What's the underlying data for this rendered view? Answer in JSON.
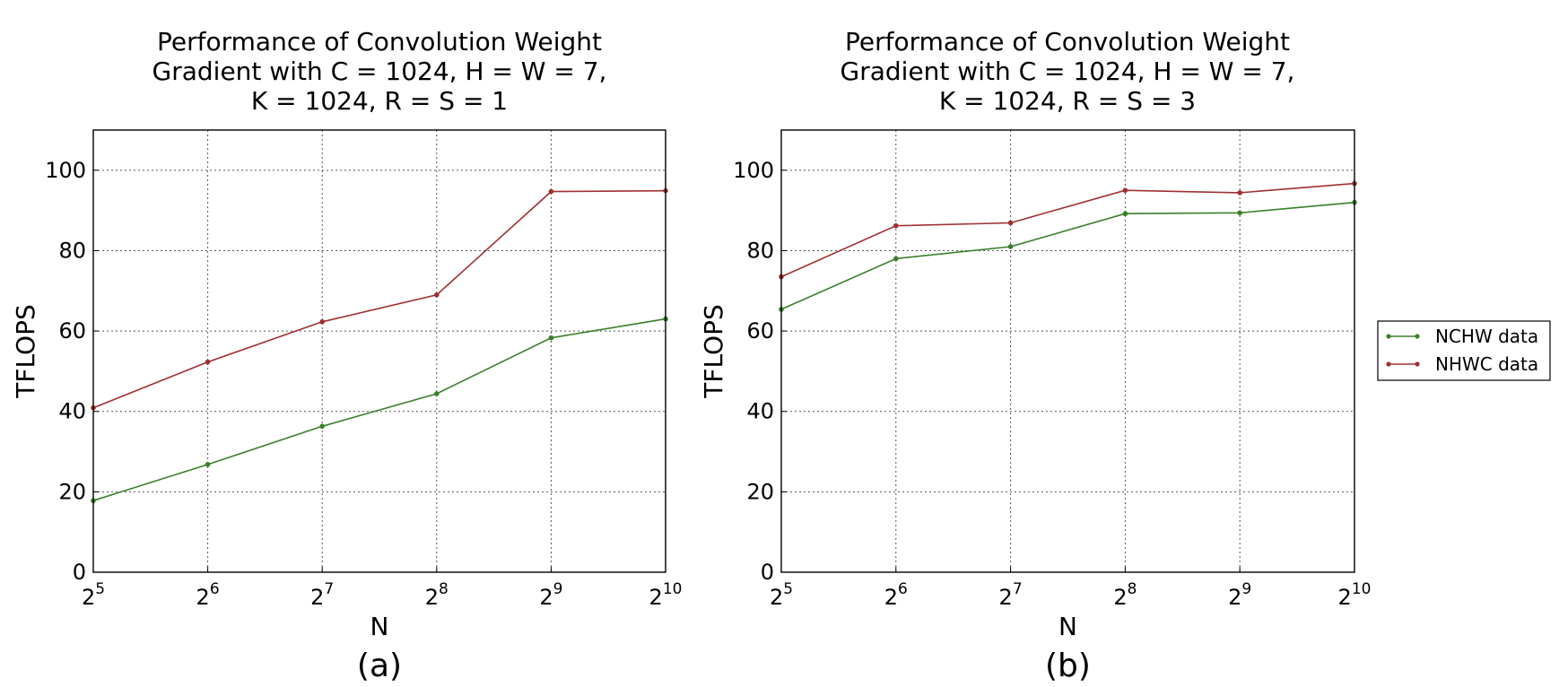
{
  "chart_data": [
    {
      "type": "line",
      "title_lines": [
        "Performance of Convolution Weight",
        "Gradient with C = 1024, H = W = 7,",
        "K = 1024, R = S = 1"
      ],
      "xlabel": "N",
      "ylabel": "TFLOPS",
      "panel_label": "(a)",
      "x_scale": "log2",
      "x": [
        32,
        64,
        128,
        256,
        512,
        1024
      ],
      "x_tick_labels": [
        {
          "base": "2",
          "exp": "5"
        },
        {
          "base": "2",
          "exp": "6"
        },
        {
          "base": "2",
          "exp": "7"
        },
        {
          "base": "2",
          "exp": "8"
        },
        {
          "base": "2",
          "exp": "9"
        },
        {
          "base": "2",
          "exp": "10"
        }
      ],
      "ylim": [
        0,
        110
      ],
      "y_ticks": [
        "0",
        "20",
        "40",
        "60",
        "80",
        "100"
      ],
      "grid": true,
      "series": [
        {
          "name": "NCHW data",
          "color": "#3a7f2a",
          "values": [
            17.8,
            26.8,
            36.3,
            44.4,
            58.3,
            63.0
          ]
        },
        {
          "name": "NHWC data",
          "color": "#a03030",
          "values": [
            40.9,
            52.3,
            62.3,
            69.0,
            94.7,
            94.9
          ]
        }
      ]
    },
    {
      "type": "line",
      "title_lines": [
        "Performance of Convolution Weight",
        "Gradient with C = 1024, H = W = 7,",
        "K = 1024, R = S = 3"
      ],
      "xlabel": "N",
      "ylabel": "TFLOPS",
      "panel_label": "(b)",
      "x_scale": "log2",
      "x": [
        32,
        64,
        128,
        256,
        512,
        1024
      ],
      "x_tick_labels": [
        {
          "base": "2",
          "exp": "5"
        },
        {
          "base": "2",
          "exp": "6"
        },
        {
          "base": "2",
          "exp": "7"
        },
        {
          "base": "2",
          "exp": "8"
        },
        {
          "base": "2",
          "exp": "9"
        },
        {
          "base": "2",
          "exp": "10"
        }
      ],
      "ylim": [
        0,
        110
      ],
      "y_ticks": [
        "0",
        "20",
        "40",
        "60",
        "80",
        "100"
      ],
      "grid": true,
      "series": [
        {
          "name": "NCHW data",
          "color": "#3a7f2a",
          "values": [
            65.4,
            78.0,
            81.0,
            89.2,
            89.4,
            92.0
          ]
        },
        {
          "name": "NHWC data",
          "color": "#a03030",
          "values": [
            73.5,
            86.2,
            86.9,
            95.0,
            94.4,
            96.7
          ]
        }
      ]
    }
  ],
  "legend": {
    "placement": "right",
    "entries": [
      {
        "label": "NCHW data",
        "color": "#3a7f2a"
      },
      {
        "label": "NHWC data",
        "color": "#a03030"
      }
    ]
  }
}
